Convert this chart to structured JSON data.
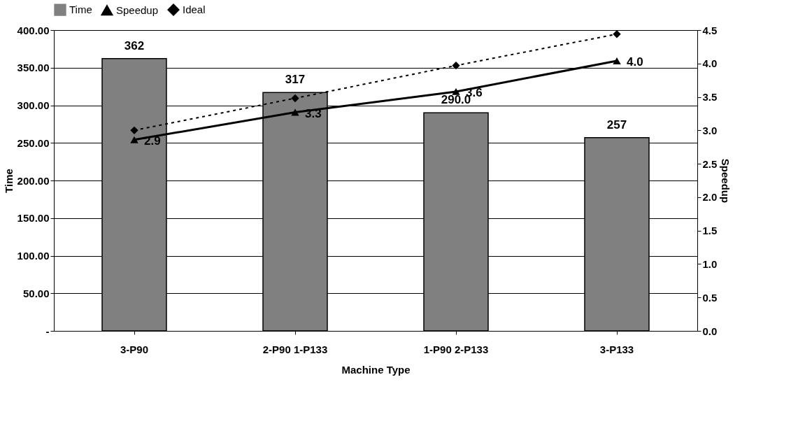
{
  "chart_data": {
    "type": "bar",
    "xlabel": "Machine Type",
    "ylabel": "Time",
    "y2label": "Speedup",
    "categories": [
      "3-P90",
      "2-P90 1-P133",
      "1-P90 2-P133",
      "3-P133"
    ],
    "series": [
      {
        "name": "Time",
        "color": "#808080",
        "values": [
          362,
          317,
          290,
          257
        ],
        "value_labels": [
          "362",
          "317",
          "290.0",
          "257"
        ]
      },
      {
        "name": "Speedup",
        "type": "line",
        "axis": "y2",
        "color": "#000000",
        "marker": "triangle",
        "line_style": "solid",
        "values": [
          2.86,
          3.27,
          3.58,
          4.04
        ],
        "value_labels": [
          "2.9",
          "3.3",
          "3.6",
          "4.0"
        ]
      },
      {
        "name": "Ideal",
        "type": "line",
        "axis": "y2",
        "color": "#000000",
        "marker": "diamond",
        "line_style": "dashed",
        "values": [
          3.0,
          3.48,
          3.97,
          4.44
        ]
      }
    ],
    "ylim": [
      0,
      400
    ],
    "yticks": [
      {
        "value": 0,
        "label": "-"
      },
      {
        "value": 50,
        "label": "50.00"
      },
      {
        "value": 100,
        "label": "100.00"
      },
      {
        "value": 150,
        "label": "150.00"
      },
      {
        "value": 200,
        "label": "200.00"
      },
      {
        "value": 250,
        "label": "250.00"
      },
      {
        "value": 300,
        "label": "300.00"
      },
      {
        "value": 350,
        "label": "350.00"
      },
      {
        "value": 400,
        "label": "400.00"
      }
    ],
    "y2lim": [
      0,
      4.5
    ],
    "y2ticks": [
      {
        "value": 0,
        "label": "0.0"
      },
      {
        "value": 0.5,
        "label": "0.5"
      },
      {
        "value": 1,
        "label": "1.0"
      },
      {
        "value": 1.5,
        "label": "1.5"
      },
      {
        "value": 2,
        "label": "2.0"
      },
      {
        "value": 2.5,
        "label": "2.5"
      },
      {
        "value": 3,
        "label": "3.0"
      },
      {
        "value": 3.5,
        "label": "3.5"
      },
      {
        "value": 4,
        "label": "4.0"
      },
      {
        "value": 4.5,
        "label": "4.5"
      }
    ],
    "grid": "y",
    "legend": "top"
  }
}
